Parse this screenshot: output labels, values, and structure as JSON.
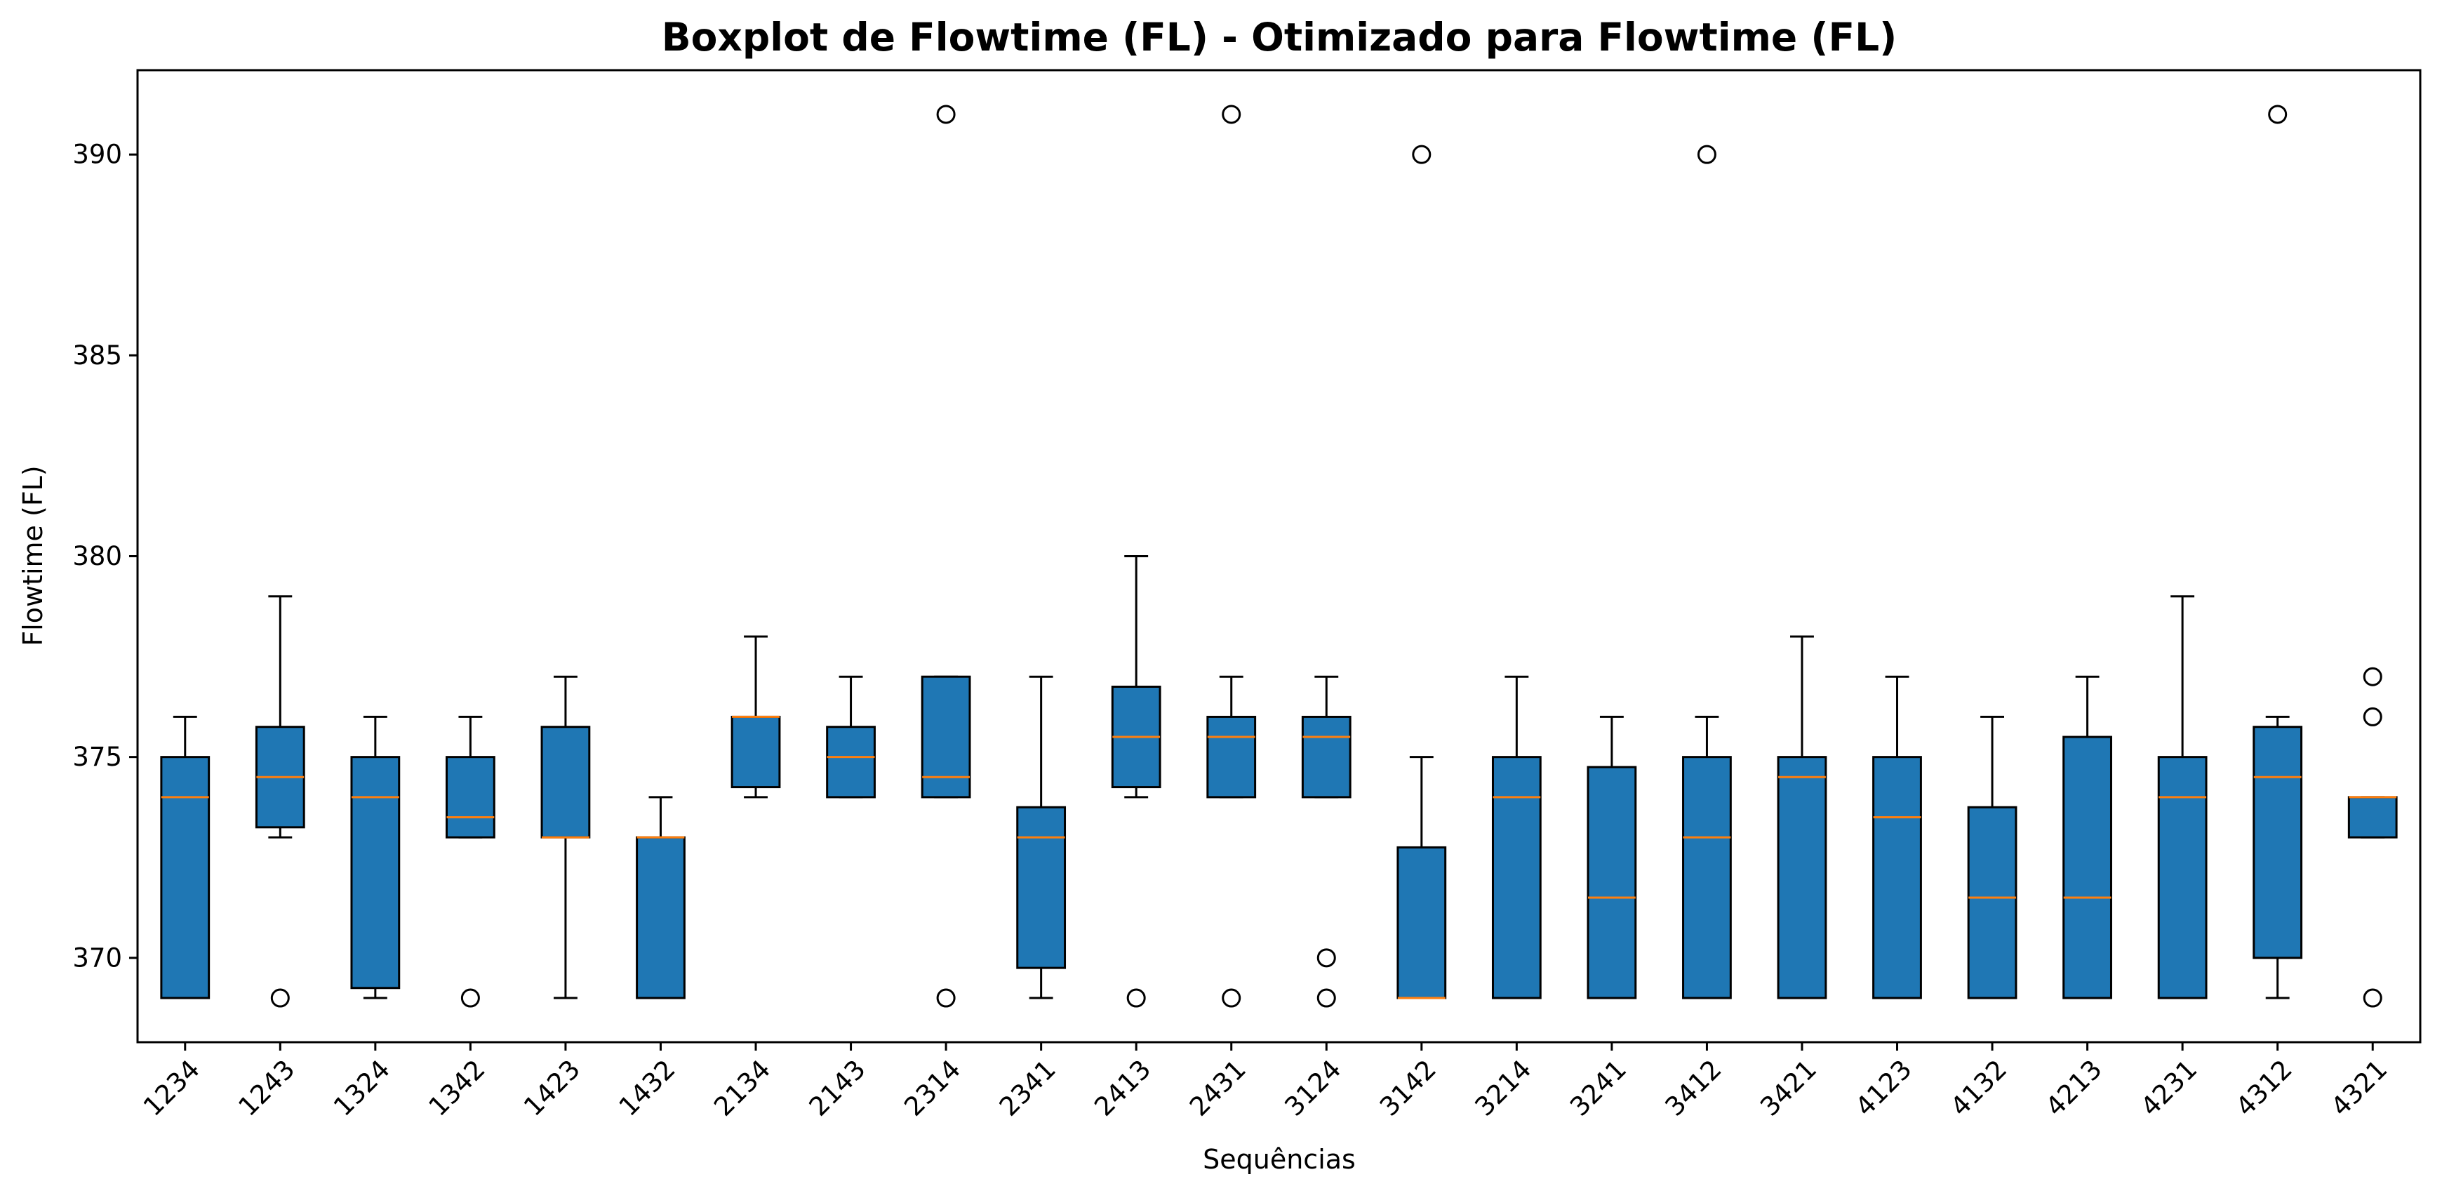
{
  "chart_data": {
    "type": "boxplot",
    "title": "Boxplot de Flowtime (FL) - Otimizado para Flowtime (FL)",
    "xlabel": "Sequências",
    "ylabel": "Flowtime (FL)",
    "ylim": [
      367.9,
      392.1
    ],
    "yticks": [
      370,
      375,
      380,
      385,
      390
    ],
    "grid": false,
    "legend": "none",
    "colors": {
      "box_fill": "#1f77b4",
      "median": "#ff7f0e",
      "edge": "#000000"
    },
    "categories": [
      "1234",
      "1243",
      "1324",
      "1342",
      "1423",
      "1432",
      "2134",
      "2143",
      "2314",
      "2341",
      "2413",
      "2431",
      "3124",
      "3142",
      "3214",
      "3241",
      "3412",
      "3421",
      "4123",
      "4132",
      "4213",
      "4231",
      "4312",
      "4321"
    ],
    "boxes": [
      {
        "label": "1234",
        "whislo": 369,
        "q1": 369,
        "med": 374,
        "q3": 375,
        "whishi": 376,
        "fliers": []
      },
      {
        "label": "1243",
        "whislo": 373,
        "q1": 373.25,
        "med": 374.5,
        "q3": 375.75,
        "whishi": 379,
        "fliers": [
          369
        ]
      },
      {
        "label": "1324",
        "whislo": 369,
        "q1": 369.25,
        "med": 374,
        "q3": 375,
        "whishi": 376,
        "fliers": []
      },
      {
        "label": "1342",
        "whislo": 373,
        "q1": 373,
        "med": 373.5,
        "q3": 375,
        "whishi": 376,
        "fliers": [
          369
        ]
      },
      {
        "label": "1423",
        "whislo": 369,
        "q1": 373,
        "med": 373,
        "q3": 375.75,
        "whishi": 377,
        "fliers": []
      },
      {
        "label": "1432",
        "whislo": 369,
        "q1": 369,
        "med": 373,
        "q3": 373,
        "whishi": 374,
        "fliers": []
      },
      {
        "label": "2134",
        "whislo": 374,
        "q1": 374.25,
        "med": 376,
        "q3": 376,
        "whishi": 378,
        "fliers": []
      },
      {
        "label": "2143",
        "whislo": 374,
        "q1": 374,
        "med": 375,
        "q3": 375.75,
        "whishi": 377,
        "fliers": []
      },
      {
        "label": "2314",
        "whislo": 374,
        "q1": 374,
        "med": 374.5,
        "q3": 377,
        "whishi": 377,
        "fliers": [
          369,
          391
        ]
      },
      {
        "label": "2341",
        "whislo": 369,
        "q1": 369.75,
        "med": 373,
        "q3": 373.75,
        "whishi": 377,
        "fliers": []
      },
      {
        "label": "2413",
        "whislo": 374,
        "q1": 374.25,
        "med": 375.5,
        "q3": 376.75,
        "whishi": 380,
        "fliers": [
          369
        ]
      },
      {
        "label": "2431",
        "whislo": 374,
        "q1": 374,
        "med": 375.5,
        "q3": 376,
        "whishi": 377,
        "fliers": [
          369,
          391
        ]
      },
      {
        "label": "3124",
        "whislo": 374,
        "q1": 374,
        "med": 375.5,
        "q3": 376,
        "whishi": 377,
        "fliers": [
          369,
          370
        ]
      },
      {
        "label": "3142",
        "whislo": 369,
        "q1": 369,
        "med": 369,
        "q3": 372.75,
        "whishi": 375,
        "fliers": [
          390
        ]
      },
      {
        "label": "3214",
        "whislo": 369,
        "q1": 369,
        "med": 374,
        "q3": 375,
        "whishi": 377,
        "fliers": []
      },
      {
        "label": "3241",
        "whislo": 369,
        "q1": 369,
        "med": 371.5,
        "q3": 374.75,
        "whishi": 376,
        "fliers": []
      },
      {
        "label": "3412",
        "whislo": 369,
        "q1": 369,
        "med": 373,
        "q3": 375,
        "whishi": 376,
        "fliers": [
          390
        ]
      },
      {
        "label": "3421",
        "whislo": 369,
        "q1": 369,
        "med": 374.5,
        "q3": 375,
        "whishi": 378,
        "fliers": []
      },
      {
        "label": "4123",
        "whislo": 369,
        "q1": 369,
        "med": 373.5,
        "q3": 375,
        "whishi": 377,
        "fliers": []
      },
      {
        "label": "4132",
        "whislo": 369,
        "q1": 369,
        "med": 371.5,
        "q3": 373.75,
        "whishi": 376,
        "fliers": []
      },
      {
        "label": "4213",
        "whislo": 369,
        "q1": 369,
        "med": 371.5,
        "q3": 375.5,
        "whishi": 377,
        "fliers": []
      },
      {
        "label": "4231",
        "whislo": 369,
        "q1": 369,
        "med": 374,
        "q3": 375,
        "whishi": 379,
        "fliers": []
      },
      {
        "label": "4312",
        "whislo": 369,
        "q1": 370,
        "med": 374.5,
        "q3": 375.75,
        "whishi": 376,
        "fliers": [
          391
        ]
      },
      {
        "label": "4321",
        "whislo": 373,
        "q1": 373,
        "med": 374,
        "q3": 374,
        "whishi": 374,
        "fliers": [
          369,
          376,
          377
        ]
      }
    ]
  }
}
